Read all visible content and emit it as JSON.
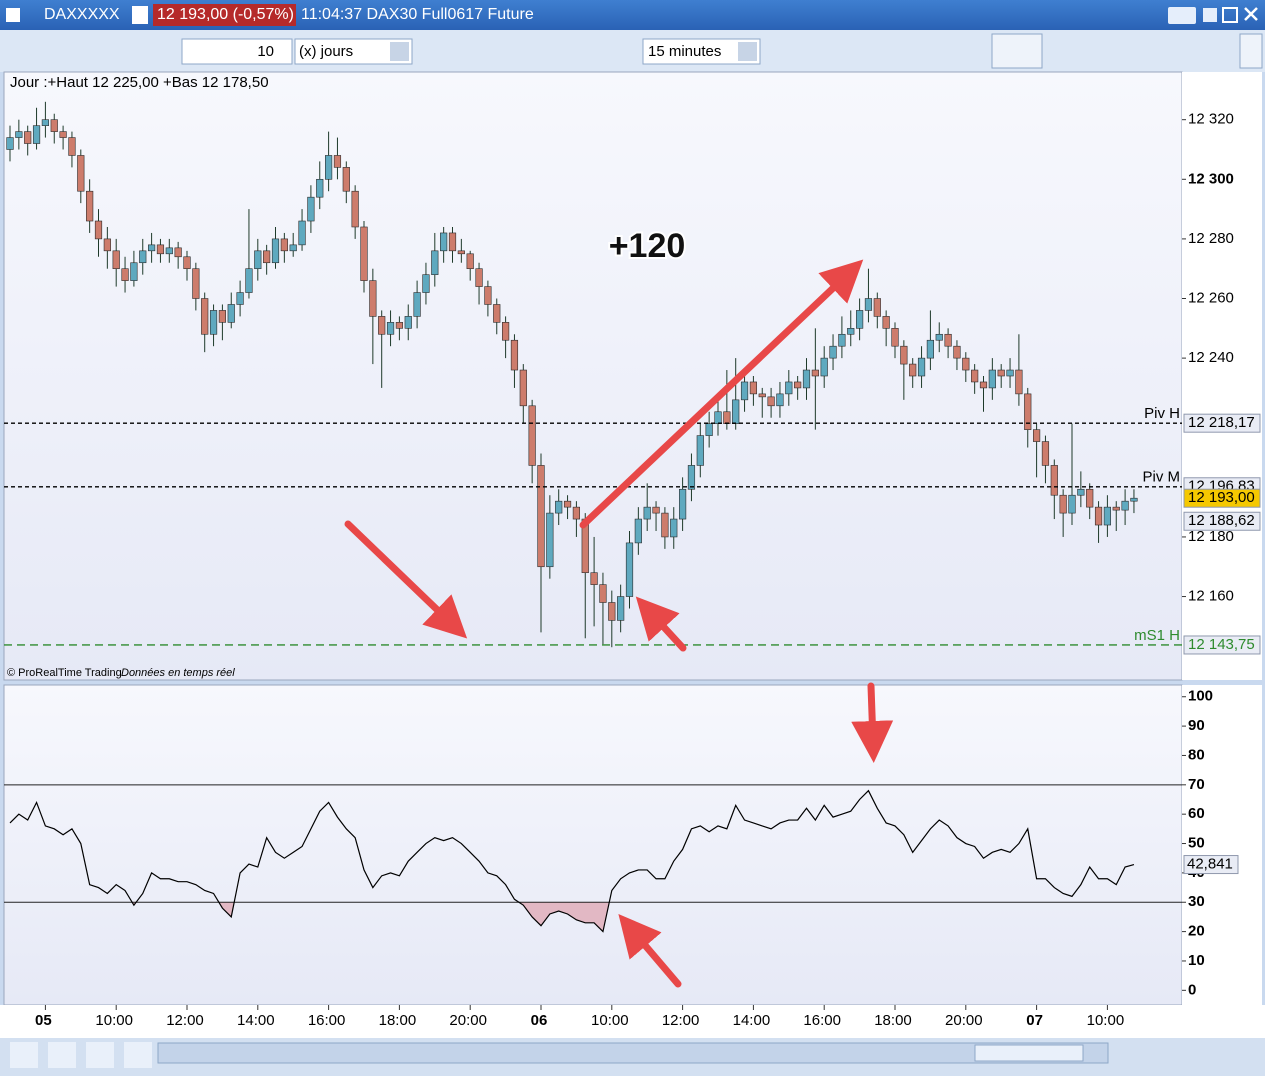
{
  "ui": {
    "title": "DAXXXXX",
    "price_badge": "12 193,00 (-0,57%)",
    "info": "11:04:37 DAX30 Full0617 Future",
    "period_count": "10",
    "period_unit": "(x) jours",
    "timeframe": "15 minutes",
    "day_range": "Jour :+Haut 12 225,00 +Bas 12 178,50",
    "annotation": "+120",
    "copyright": "© ProRealTime Trading",
    "realtime": "Données en temps réel"
  },
  "chart_data": [
    {
      "type": "candlestick",
      "up_color": "#5fa9bf",
      "down_color": "#cd7c6c",
      "ylim": [
        12132,
        12336
      ],
      "yticks": [
        {
          "value": 12160,
          "label": "12 160"
        },
        {
          "value": 12180,
          "label": "12 180"
        },
        {
          "value": 12240,
          "label": "12 240"
        },
        {
          "value": 12260,
          "label": "12 260"
        },
        {
          "value": 12280,
          "label": "12 280"
        },
        {
          "value": 12300,
          "label": "12 300"
        },
        {
          "value": 12320,
          "label": "12 320"
        }
      ],
      "xticks": [
        {
          "value": 4,
          "label": "05"
        },
        {
          "value": 12,
          "label": "10:00"
        },
        {
          "value": 20,
          "label": "12:00"
        },
        {
          "value": 28,
          "label": "14:00"
        },
        {
          "value": 36,
          "label": "16:00"
        },
        {
          "value": 44,
          "label": "18:00"
        },
        {
          "value": 52,
          "label": "20:00"
        },
        {
          "value": 60,
          "label": "06"
        },
        {
          "value": 68,
          "label": "10:00"
        },
        {
          "value": 76,
          "label": "12:00"
        },
        {
          "value": 84,
          "label": "14:00"
        },
        {
          "value": 92,
          "label": "16:00"
        },
        {
          "value": 100,
          "label": "18:00"
        },
        {
          "value": 108,
          "label": "20:00"
        },
        {
          "value": 116,
          "label": "07"
        },
        {
          "value": 124,
          "label": "10:00"
        }
      ],
      "levels": [
        {
          "name": "Piv H",
          "value": 12218.17,
          "label": "12 218,17",
          "color": "#000000",
          "dash": "4 3"
        },
        {
          "name": "Piv M",
          "value": 12196.83,
          "label": "12 196,83",
          "color": "#000000",
          "dash": "4 3"
        },
        {
          "name": "mS1 H",
          "value": 12143.75,
          "label": "12 143,75",
          "color": "#2e8b2e",
          "dash": "8 5"
        }
      ],
      "price_labels": [
        {
          "value": 12193,
          "label": "12 193,00",
          "color": "#f5c800"
        },
        {
          "value": 12188.62,
          "label": "12 188,62",
          "color": "#e9ecf5"
        }
      ],
      "ohlc": [
        [
          12310,
          12318,
          12306,
          12314
        ],
        [
          12314,
          12320,
          12310,
          12316
        ],
        [
          12316,
          12318,
          12308,
          12312
        ],
        [
          12312,
          12324,
          12310,
          12318
        ],
        [
          12318,
          12326,
          12314,
          12320
        ],
        [
          12320,
          12322,
          12312,
          12316
        ],
        [
          12316,
          12318,
          12310,
          12314
        ],
        [
          12314,
          12316,
          12304,
          12308
        ],
        [
          12308,
          12310,
          12292,
          12296
        ],
        [
          12296,
          12300,
          12282,
          12286
        ],
        [
          12286,
          12290,
          12274,
          12280
        ],
        [
          12280,
          12284,
          12270,
          12276
        ],
        [
          12276,
          12280,
          12264,
          12270
        ],
        [
          12270,
          12274,
          12262,
          12266
        ],
        [
          12266,
          12276,
          12264,
          12272
        ],
        [
          12272,
          12280,
          12268,
          12276
        ],
        [
          12276,
          12282,
          12272,
          12278
        ],
        [
          12278,
          12280,
          12272,
          12275
        ],
        [
          12275,
          12280,
          12272,
          12277
        ],
        [
          12277,
          12279,
          12270,
          12274
        ],
        [
          12274,
          12276,
          12266,
          12270
        ],
        [
          12270,
          12272,
          12256,
          12260
        ],
        [
          12260,
          12262,
          12242,
          12248
        ],
        [
          12248,
          12258,
          12244,
          12256
        ],
        [
          12256,
          12258,
          12246,
          12252
        ],
        [
          12252,
          12262,
          12250,
          12258
        ],
        [
          12258,
          12266,
          12254,
          12262
        ],
        [
          12262,
          12290,
          12260,
          12270
        ],
        [
          12270,
          12280,
          12266,
          12276
        ],
        [
          12276,
          12278,
          12268,
          12272
        ],
        [
          12272,
          12284,
          12270,
          12280
        ],
        [
          12280,
          12282,
          12272,
          12276
        ],
        [
          12276,
          12282,
          12274,
          12278
        ],
        [
          12278,
          12290,
          12276,
          12286
        ],
        [
          12286,
          12298,
          12282,
          12294
        ],
        [
          12294,
          12306,
          12290,
          12300
        ],
        [
          12300,
          12316,
          12296,
          12308
        ],
        [
          12308,
          12314,
          12300,
          12304
        ],
        [
          12304,
          12306,
          12292,
          12296
        ],
        [
          12296,
          12298,
          12280,
          12284
        ],
        [
          12284,
          12286,
          12262,
          12266
        ],
        [
          12266,
          12270,
          12238,
          12254
        ],
        [
          12254,
          12256,
          12230,
          12248
        ],
        [
          12248,
          12256,
          12244,
          12252
        ],
        [
          12252,
          12254,
          12246,
          12250
        ],
        [
          12250,
          12258,
          12246,
          12254
        ],
        [
          12254,
          12266,
          12250,
          12262
        ],
        [
          12262,
          12272,
          12258,
          12268
        ],
        [
          12268,
          12282,
          12264,
          12276
        ],
        [
          12276,
          12284,
          12272,
          12282
        ],
        [
          12282,
          12284,
          12272,
          12276
        ],
        [
          12276,
          12280,
          12272,
          12275
        ],
        [
          12275,
          12276,
          12266,
          12270
        ],
        [
          12270,
          12272,
          12258,
          12264
        ],
        [
          12264,
          12266,
          12254,
          12258
        ],
        [
          12258,
          12260,
          12248,
          12252
        ],
        [
          12252,
          12254,
          12240,
          12246
        ],
        [
          12246,
          12248,
          12230,
          12236
        ],
        [
          12236,
          12238,
          12218,
          12224
        ],
        [
          12224,
          12226,
          12198,
          12204
        ],
        [
          12204,
          12208,
          12148,
          12170
        ],
        [
          12170,
          12194,
          12166,
          12188
        ],
        [
          12188,
          12196,
          12184,
          12192
        ],
        [
          12192,
          12194,
          12186,
          12190
        ],
        [
          12190,
          12192,
          12180,
          12186
        ],
        [
          12186,
          12188,
          12146,
          12168
        ],
        [
          12168,
          12180,
          12150,
          12164
        ],
        [
          12164,
          12168,
          12144,
          12158
        ],
        [
          12158,
          12162,
          12143,
          12152
        ],
        [
          12152,
          12164,
          12148,
          12160
        ],
        [
          12160,
          12182,
          12156,
          12178
        ],
        [
          12178,
          12190,
          12174,
          12186
        ],
        [
          12186,
          12198,
          12182,
          12190
        ],
        [
          12190,
          12192,
          12182,
          12188
        ],
        [
          12188,
          12190,
          12176,
          12180
        ],
        [
          12180,
          12190,
          12176,
          12186
        ],
        [
          12186,
          12200,
          12182,
          12196
        ],
        [
          12196,
          12208,
          12192,
          12204
        ],
        [
          12204,
          12218,
          12200,
          12214
        ],
        [
          12214,
          12222,
          12210,
          12218
        ],
        [
          12218,
          12226,
          12214,
          12222
        ],
        [
          12222,
          12236,
          12216,
          12218
        ],
        [
          12218,
          12240,
          12216,
          12226
        ],
        [
          12226,
          12236,
          12222,
          12232
        ],
        [
          12232,
          12234,
          12224,
          12228
        ],
        [
          12228,
          12230,
          12220,
          12227
        ],
        [
          12227,
          12230,
          12220,
          12224
        ],
        [
          12224,
          12232,
          12220,
          12228
        ],
        [
          12228,
          12236,
          12224,
          12232
        ],
        [
          12232,
          12234,
          12226,
          12230
        ],
        [
          12230,
          12240,
          12226,
          12236
        ],
        [
          12236,
          12250,
          12216,
          12234
        ],
        [
          12234,
          12244,
          12230,
          12240
        ],
        [
          12240,
          12248,
          12236,
          12244
        ],
        [
          12244,
          12254,
          12240,
          12248
        ],
        [
          12248,
          12256,
          12244,
          12250
        ],
        [
          12250,
          12260,
          12246,
          12256
        ],
        [
          12256,
          12270,
          12252,
          12260
        ],
        [
          12260,
          12262,
          12250,
          12254
        ],
        [
          12254,
          12256,
          12244,
          12250
        ],
        [
          12250,
          12252,
          12240,
          12244
        ],
        [
          12244,
          12246,
          12226,
          12238
        ],
        [
          12238,
          12240,
          12230,
          12234
        ],
        [
          12234,
          12244,
          12230,
          12240
        ],
        [
          12240,
          12256,
          12236,
          12246
        ],
        [
          12246,
          12252,
          12242,
          12248
        ],
        [
          12248,
          12250,
          12240,
          12244
        ],
        [
          12244,
          12246,
          12236,
          12240
        ],
        [
          12240,
          12242,
          12232,
          12236
        ],
        [
          12236,
          12238,
          12228,
          12232
        ],
        [
          12232,
          12234,
          12222,
          12230
        ],
        [
          12230,
          12240,
          12226,
          12236
        ],
        [
          12236,
          12238,
          12230,
          12234
        ],
        [
          12234,
          12240,
          12230,
          12236
        ],
        [
          12236,
          12248,
          12224,
          12228
        ],
        [
          12228,
          12230,
          12210,
          12216
        ],
        [
          12216,
          12218,
          12200,
          12212
        ],
        [
          12212,
          12214,
          12198,
          12204
        ],
        [
          12204,
          12206,
          12186,
          12194
        ],
        [
          12194,
          12196,
          12180,
          12188
        ],
        [
          12188,
          12218,
          12184,
          12194
        ],
        [
          12194,
          12202,
          12190,
          12196
        ],
        [
          12196,
          12198,
          12186,
          12190
        ],
        [
          12190,
          12192,
          12178,
          12184
        ],
        [
          12184,
          12194,
          12180,
          12190
        ],
        [
          12190,
          12192,
          12182,
          12189
        ],
        [
          12189,
          12196,
          12184,
          12192
        ],
        [
          12192,
          12196,
          12188,
          12193
        ]
      ]
    },
    {
      "type": "line",
      "color": "#000000",
      "shade_color": "#e2b8c4",
      "ylim": [
        -5,
        104
      ],
      "yticks": [
        0,
        10,
        20,
        30,
        40,
        50,
        60,
        70,
        80,
        90,
        100
      ],
      "hlines": [
        70,
        30
      ],
      "last_label": {
        "value": 42.841,
        "label": "42,841"
      },
      "values": [
        57,
        60,
        58,
        64,
        56,
        55,
        53,
        55,
        50,
        36,
        35,
        33,
        36,
        34,
        29,
        33,
        40,
        38,
        38,
        37,
        37,
        36,
        34,
        33,
        28,
        25,
        40,
        43,
        42,
        52,
        47,
        45,
        47,
        49,
        55,
        61,
        64,
        59,
        55,
        52,
        41,
        35,
        39,
        40,
        39,
        44,
        47,
        50,
        52,
        51,
        52,
        50,
        47,
        44,
        40,
        39,
        36,
        31,
        29,
        25,
        22,
        26,
        27,
        26,
        24,
        23,
        23,
        20,
        34,
        38,
        40,
        41,
        41,
        38,
        38,
        44,
        48,
        55,
        56,
        54,
        56,
        55,
        63,
        58,
        57,
        56,
        55,
        57,
        58,
        58,
        62,
        58,
        63,
        59,
        60,
        61,
        65,
        68,
        62,
        57,
        56,
        53,
        47,
        51,
        55,
        58,
        56,
        52,
        50,
        49,
        45,
        47,
        48,
        47,
        50,
        55,
        38,
        38,
        35,
        33,
        32,
        36,
        42,
        38,
        38,
        36,
        42,
        42.841
      ]
    }
  ]
}
